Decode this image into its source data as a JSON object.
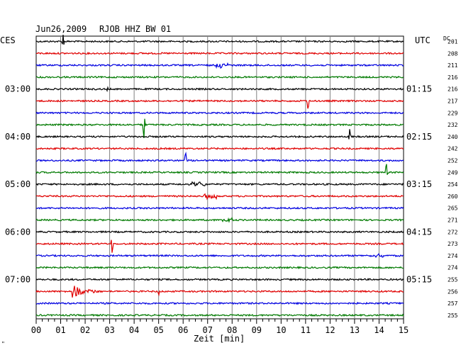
{
  "header": {
    "date": "Jun26,2009",
    "station": "RJOB HHZ BW 01",
    "left_zone": "CES",
    "right_zone": "UTC",
    "dc_label": "DC"
  },
  "footer": {
    "xlabel": "Zeit [min]",
    "corner_mark": "\""
  },
  "colors": {
    "black": "#000000",
    "red": "#e00000",
    "blue": "#0000e0",
    "green": "#007a00"
  },
  "chart_data": {
    "type": "line",
    "title": "Jun26,2009   RJOB HHZ BW 01",
    "xlabel": "Zeit [min]",
    "xlim": [
      0,
      15
    ],
    "x_ticks": [
      "00",
      "01",
      "02",
      "03",
      "04",
      "05",
      "06",
      "07",
      "08",
      "09",
      "10",
      "11",
      "12",
      "13",
      "14",
      "15"
    ],
    "trace_interval_min": 15,
    "trace_colors": [
      "black",
      "red",
      "blue",
      "green"
    ],
    "left_time_labels": [
      {
        "row": 4,
        "text": "03:00"
      },
      {
        "row": 8,
        "text": "04:00"
      },
      {
        "row": 12,
        "text": "05:00"
      },
      {
        "row": 16,
        "text": "06:00"
      },
      {
        "row": 20,
        "text": "07:00"
      }
    ],
    "right_time_labels": [
      {
        "row": 4,
        "text": "01:15"
      },
      {
        "row": 8,
        "text": "02:15"
      },
      {
        "row": 12,
        "text": "03:15"
      },
      {
        "row": 16,
        "text": "04:15"
      },
      {
        "row": 20,
        "text": "05:15"
      }
    ],
    "dc_offsets": [
      201,
      208,
      211,
      216,
      216,
      217,
      229,
      232,
      240,
      242,
      252,
      249,
      254,
      260,
      265,
      271,
      272,
      273,
      274,
      274,
      255,
      256,
      257,
      255
    ],
    "events": [
      {
        "row": 0,
        "minute": 1.1,
        "amp": 9,
        "kind": "spike"
      },
      {
        "row": 2,
        "minute": 7.4,
        "amp": 3,
        "kind": "burst"
      },
      {
        "row": 4,
        "minute": 2.9,
        "amp": 3,
        "kind": "spike"
      },
      {
        "row": 5,
        "minute": 11.1,
        "amp": 12,
        "kind": "spike"
      },
      {
        "row": 7,
        "minute": 4.4,
        "amp": 20,
        "kind": "spike"
      },
      {
        "row": 8,
        "minute": 12.8,
        "amp": 10,
        "kind": "spike"
      },
      {
        "row": 10,
        "minute": 6.1,
        "amp": 14,
        "kind": "spike"
      },
      {
        "row": 11,
        "minute": 14.3,
        "amp": 14,
        "kind": "spike"
      },
      {
        "row": 12,
        "minute": 6.4,
        "amp": 3,
        "kind": "burst"
      },
      {
        "row": 13,
        "minute": 6.9,
        "amp": 3,
        "kind": "burst"
      },
      {
        "row": 15,
        "minute": 7.5,
        "amp": 3,
        "kind": "burst"
      },
      {
        "row": 17,
        "minute": 3.1,
        "amp": 12,
        "kind": "spike"
      },
      {
        "row": 18,
        "minute": 13.7,
        "amp": 3,
        "kind": "burst"
      },
      {
        "row": 21,
        "minute": 1.5,
        "amp": 10,
        "kind": "quake"
      },
      {
        "row": 21,
        "minute": 5.0,
        "amp": 5,
        "kind": "spike"
      }
    ]
  }
}
